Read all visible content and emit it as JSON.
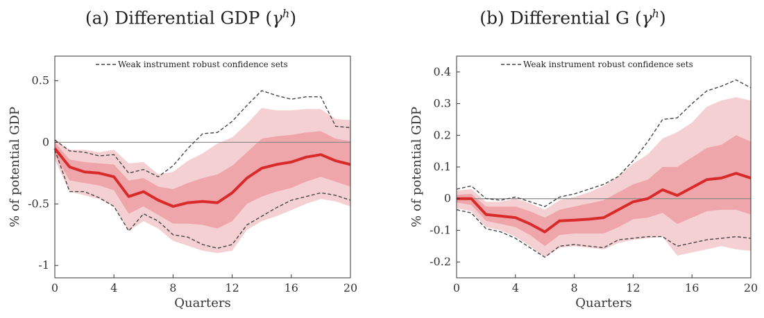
{
  "chart_data": [
    {
      "type": "line",
      "title": "(a) Differential GDP (",
      "title_symbol": "γ",
      "title_superscript": "h",
      "title_close": ")",
      "xlabel": "Quarters",
      "ylabel": "% of potential GDP",
      "xlim": [
        0,
        20
      ],
      "ylim": [
        -1.1,
        0.7
      ],
      "xticks": [
        0,
        4,
        8,
        12,
        16,
        20
      ],
      "yticks": [
        0.5,
        0,
        -0.5,
        -1
      ],
      "ytick_labels": [
        "0.5",
        "0",
        "-0.5",
        "-1"
      ],
      "legend": "Weak instrument robust confidence sets",
      "legend_position": "top",
      "x": [
        0,
        1,
        2,
        3,
        4,
        5,
        6,
        7,
        8,
        9,
        10,
        11,
        12,
        13,
        14,
        15,
        16,
        17,
        18,
        19,
        20
      ],
      "series": [
        {
          "values": [
            -0.05,
            -0.2,
            -0.24,
            -0.25,
            -0.28,
            -0.44,
            -0.4,
            -0.47,
            -0.52,
            -0.49,
            -0.48,
            -0.49,
            -0.41,
            -0.29,
            -0.21,
            -0.18,
            -0.16,
            -0.12,
            -0.1,
            -0.15,
            -0.18
          ]
        }
      ],
      "bands": [
        {
          "lower": [
            0.02,
            -0.06,
            -0.06,
            -0.08,
            -0.06,
            -0.17,
            -0.16,
            -0.26,
            -0.24,
            -0.15,
            -0.09,
            -0.01,
            0.04,
            0.15,
            0.28,
            0.26,
            0.26,
            0.27,
            0.27,
            0.19,
            0.18
          ]
        },
        {
          "lower": [
            0.0,
            -0.14,
            -0.16,
            -0.17,
            -0.18,
            -0.31,
            -0.29,
            -0.36,
            -0.38,
            -0.33,
            -0.29,
            -0.26,
            -0.19,
            -0.08,
            0.03,
            0.05,
            0.06,
            0.08,
            0.09,
            0.03,
            0.01
          ]
        },
        {
          "lower": [
            -0.1,
            -0.31,
            -0.33,
            -0.35,
            -0.39,
            -0.58,
            -0.52,
            -0.59,
            -0.66,
            -0.66,
            -0.67,
            -0.7,
            -0.64,
            -0.5,
            -0.44,
            -0.4,
            -0.37,
            -0.32,
            -0.28,
            -0.32,
            -0.36
          ]
        },
        {
          "lower": [
            -0.14,
            -0.4,
            -0.43,
            -0.46,
            -0.52,
            -0.72,
            -0.64,
            -0.7,
            -0.8,
            -0.84,
            -0.88,
            -0.9,
            -0.88,
            -0.71,
            -0.64,
            -0.6,
            -0.55,
            -0.5,
            -0.46,
            -0.48,
            -0.52
          ]
        }
      ],
      "band_fills": [
        {
          "upper": [
            0.02,
            -0.06,
            -0.06,
            -0.08,
            -0.06,
            -0.17,
            -0.16,
            -0.26,
            -0.24,
            -0.15,
            -0.09,
            -0.01,
            0.04,
            0.15,
            0.28,
            0.26,
            0.26,
            0.27,
            0.27,
            0.19,
            0.18
          ],
          "lower": [
            -0.14,
            -0.4,
            -0.43,
            -0.46,
            -0.52,
            -0.72,
            -0.64,
            -0.7,
            -0.8,
            -0.84,
            -0.88,
            -0.9,
            -0.88,
            -0.71,
            -0.64,
            -0.6,
            -0.55,
            -0.5,
            -0.46,
            -0.48,
            -0.52
          ]
        },
        {
          "upper": [
            0.0,
            -0.14,
            -0.16,
            -0.17,
            -0.18,
            -0.31,
            -0.29,
            -0.36,
            -0.38,
            -0.33,
            -0.29,
            -0.26,
            -0.19,
            -0.08,
            0.03,
            0.05,
            0.06,
            0.08,
            0.09,
            0.03,
            0.01
          ],
          "lower": [
            -0.1,
            -0.31,
            -0.33,
            -0.35,
            -0.39,
            -0.58,
            -0.52,
            -0.59,
            -0.66,
            -0.66,
            -0.67,
            -0.7,
            -0.64,
            -0.5,
            -0.44,
            -0.4,
            -0.37,
            -0.32,
            -0.28,
            -0.32,
            -0.36
          ]
        }
      ],
      "dashed_upper": [
        0.02,
        -0.07,
        -0.08,
        -0.11,
        -0.1,
        -0.25,
        -0.22,
        -0.28,
        -0.19,
        -0.05,
        0.07,
        0.08,
        0.17,
        0.3,
        0.42,
        0.38,
        0.35,
        0.37,
        0.37,
        0.13,
        0.12
      ],
      "dashed_lower": [
        -0.06,
        -0.4,
        -0.4,
        -0.45,
        -0.52,
        -0.72,
        -0.58,
        -0.64,
        -0.75,
        -0.77,
        -0.83,
        -0.86,
        -0.83,
        -0.67,
        -0.6,
        -0.53,
        -0.47,
        -0.44,
        -0.41,
        -0.43,
        -0.47
      ]
    },
    {
      "type": "line",
      "title": "(b) Differential G (",
      "title_symbol": "γ",
      "title_superscript": "h",
      "title_close": ")",
      "xlabel": "Quarters",
      "ylabel": "% of potential GDP",
      "xlim": [
        0,
        20
      ],
      "ylim": [
        -0.25,
        0.45
      ],
      "xticks": [
        0,
        4,
        8,
        12,
        16,
        20
      ],
      "yticks": [
        0.4,
        0.3,
        0.2,
        0.1,
        0,
        -0.1,
        -0.2
      ],
      "ytick_labels": [
        "0.4",
        "0.3",
        "0.2",
        "0.1",
        "0",
        "-0.1",
        "-0.2"
      ],
      "legend": "Weak instrument robust confidence sets",
      "legend_position": "top",
      "x": [
        0,
        1,
        2,
        3,
        4,
        5,
        6,
        7,
        8,
        9,
        10,
        11,
        12,
        13,
        14,
        15,
        16,
        17,
        18,
        19,
        20
      ],
      "series": [
        {
          "values": [
            0.0,
            0.0,
            -0.05,
            -0.055,
            -0.06,
            -0.08,
            -0.105,
            -0.07,
            -0.068,
            -0.065,
            -0.06,
            -0.035,
            -0.01,
            0.0,
            0.028,
            0.01,
            0.035,
            0.06,
            0.065,
            0.08,
            0.065
          ]
        }
      ],
      "band_fills": [
        {
          "upper": [
            0.025,
            0.03,
            -0.01,
            -0.01,
            0.0,
            -0.015,
            -0.035,
            -0.005,
            0.005,
            0.02,
            0.04,
            0.07,
            0.11,
            0.14,
            0.19,
            0.21,
            0.24,
            0.29,
            0.31,
            0.32,
            0.31
          ],
          "lower": [
            -0.03,
            -0.04,
            -0.09,
            -0.1,
            -0.12,
            -0.15,
            -0.185,
            -0.155,
            -0.15,
            -0.155,
            -0.16,
            -0.14,
            -0.13,
            -0.125,
            -0.12,
            -0.18,
            -0.17,
            -0.16,
            -0.15,
            -0.16,
            -0.165
          ]
        },
        {
          "upper": [
            0.012,
            0.015,
            -0.025,
            -0.025,
            -0.025,
            -0.04,
            -0.06,
            -0.035,
            -0.025,
            -0.015,
            -0.005,
            0.02,
            0.045,
            0.06,
            0.1,
            0.1,
            0.13,
            0.16,
            0.17,
            0.2,
            0.18
          ],
          "lower": [
            -0.012,
            -0.02,
            -0.07,
            -0.08,
            -0.09,
            -0.115,
            -0.15,
            -0.115,
            -0.11,
            -0.11,
            -0.11,
            -0.09,
            -0.065,
            -0.06,
            -0.045,
            -0.08,
            -0.06,
            -0.04,
            -0.035,
            -0.035,
            -0.05
          ]
        }
      ],
      "dashed_upper": [
        0.03,
        0.04,
        0.0,
        -0.005,
        0.005,
        -0.01,
        -0.025,
        0.005,
        0.015,
        0.03,
        0.045,
        0.07,
        0.12,
        0.18,
        0.25,
        0.255,
        0.3,
        0.34,
        0.355,
        0.375,
        0.35
      ],
      "dashed_lower": [
        -0.035,
        -0.045,
        -0.095,
        -0.105,
        -0.125,
        -0.155,
        -0.185,
        -0.15,
        -0.145,
        -0.15,
        -0.155,
        -0.13,
        -0.125,
        -0.12,
        -0.12,
        -0.15,
        -0.14,
        -0.13,
        -0.125,
        -0.12,
        -0.125
      ]
    }
  ],
  "colors": {
    "outer_band": "#f5d0d3",
    "inner_band": "#eea6ab",
    "line": "#d92a2a",
    "dashed": "#444444",
    "zero_line": "#888888",
    "axis": "#333333"
  }
}
